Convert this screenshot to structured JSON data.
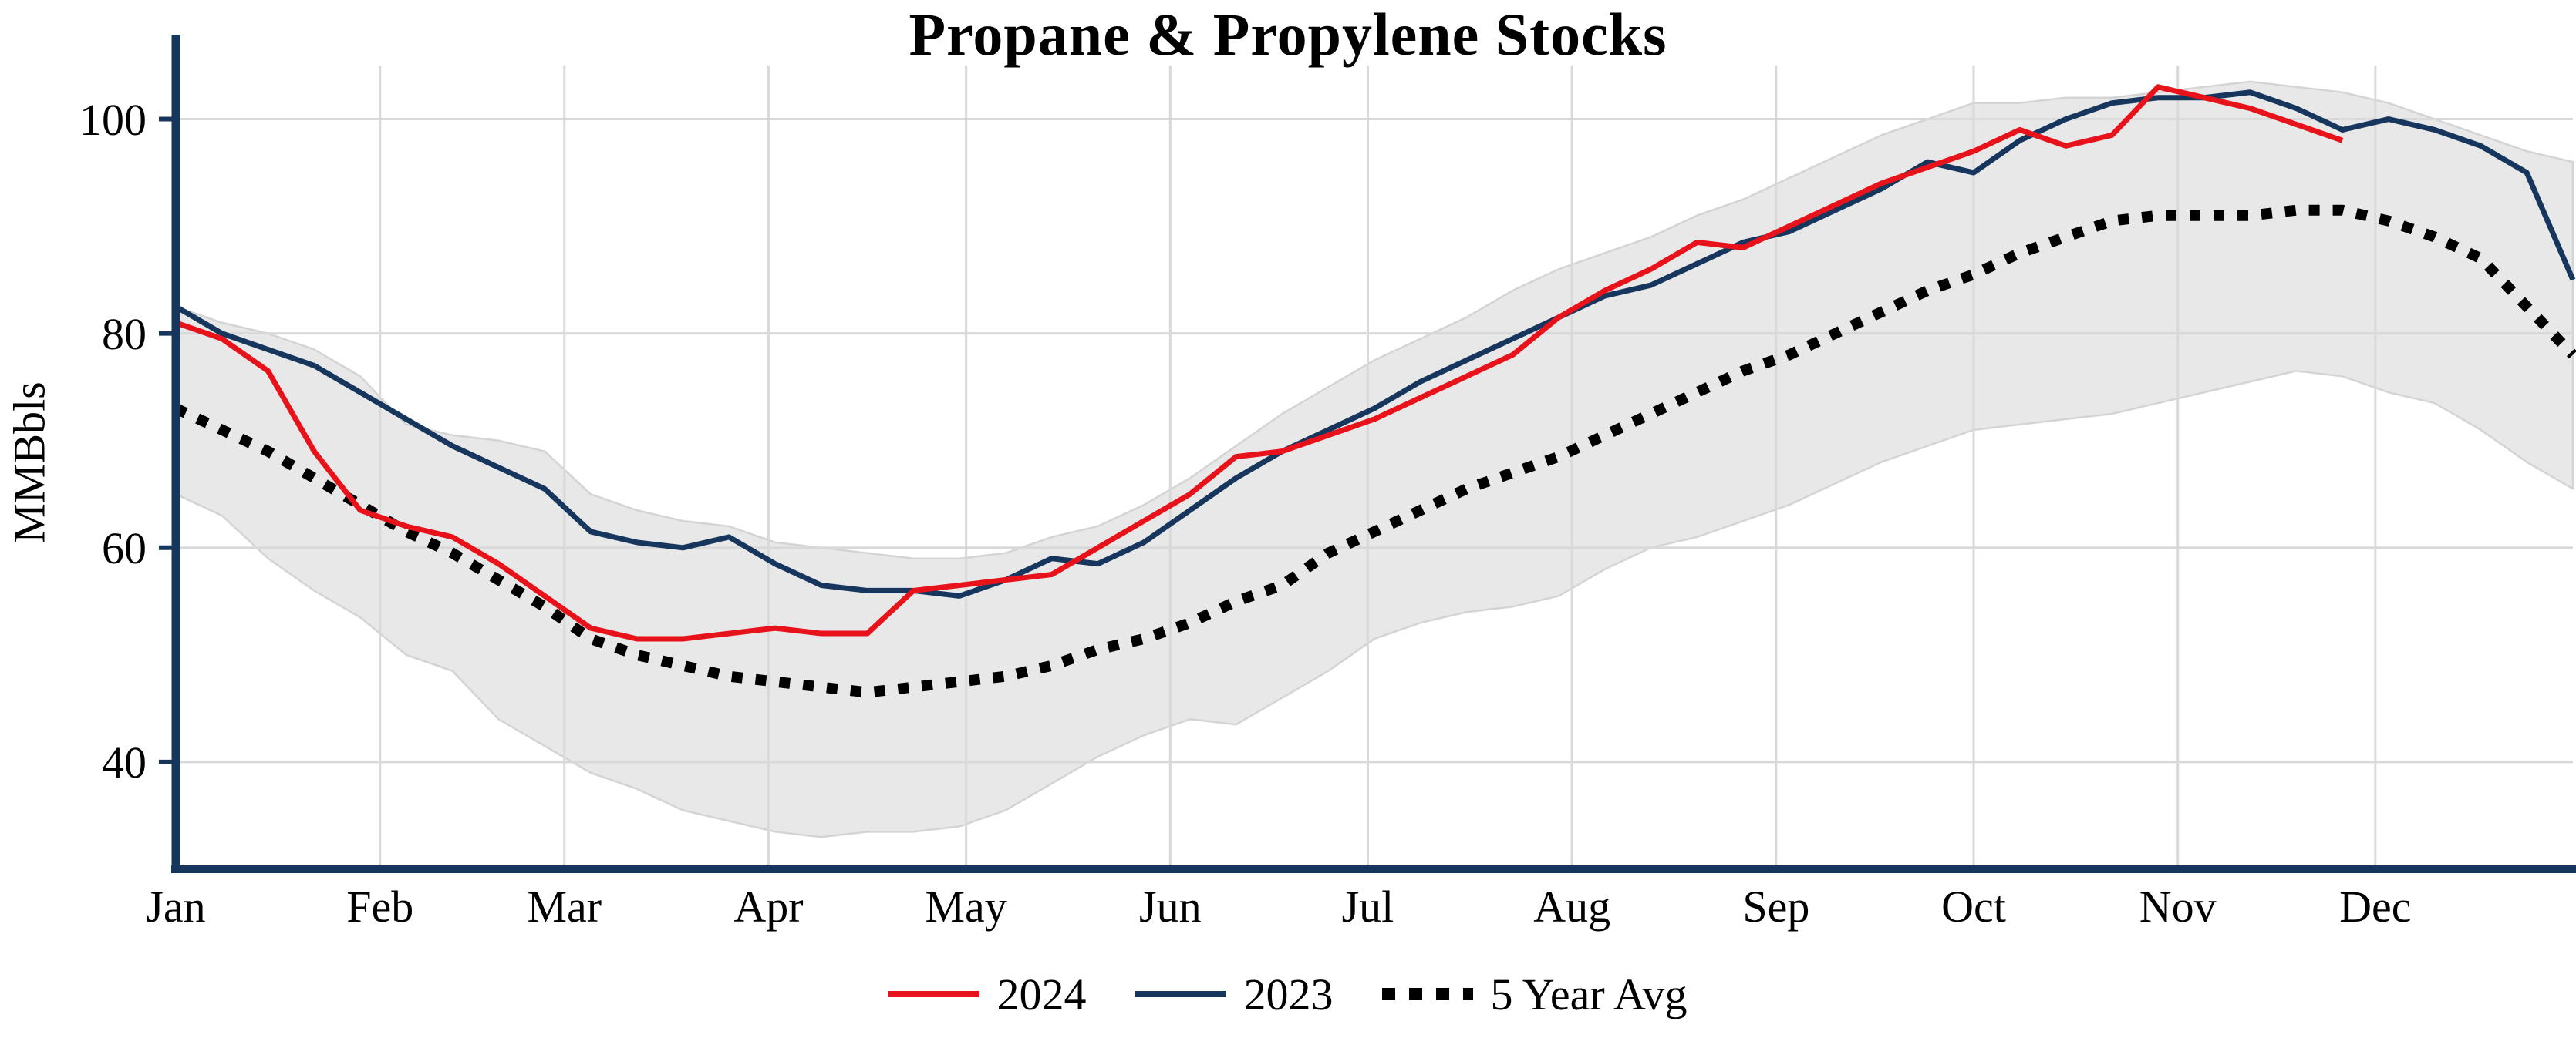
{
  "chart_data": {
    "type": "line",
    "title": "Propane & Propylene Stocks",
    "ylabel": "MMBbls",
    "xlabel": "",
    "x_unit": "day of year, weekly data points",
    "xlim": [
      0,
      364
    ],
    "ylim": [
      30,
      105
    ],
    "grid": "on",
    "legend_position": "bottom-center",
    "colors": {
      "red": "#e8121a",
      "navy": "#17365d",
      "avg": "#000000",
      "band_fill": "#e8e8e8",
      "band_edge": "#d4d4d4",
      "grid": "#d9d9d9",
      "axis": "#17365d",
      "text": "#000000"
    },
    "y_axis": {
      "ticks": [
        40,
        60,
        80,
        100
      ]
    },
    "x_axis": {
      "labels": [
        "Jan",
        "Feb",
        "Mar",
        "Apr",
        "May",
        "Jun",
        "Jul",
        "Aug",
        "Sep",
        "Oct",
        "Nov",
        "Dec"
      ],
      "label_days": [
        0,
        31,
        59,
        90,
        120,
        151,
        181,
        212,
        243,
        273,
        304,
        334
      ]
    },
    "series": [
      {
        "name": "2023",
        "color": "#17365d",
        "style": "solid",
        "x_start_day": 0,
        "step_days": 7,
        "values": [
          82.5,
          80,
          78.5,
          77,
          74.5,
          72,
          69.5,
          67.5,
          65.5,
          61.5,
          60.5,
          60,
          61,
          58.5,
          56.5,
          56,
          56,
          55.5,
          57,
          59,
          58.5,
          60.5,
          63.5,
          66.5,
          69,
          71,
          73,
          75.5,
          77.5,
          79.5,
          81.5,
          83.5,
          84.5,
          86.5,
          88.5,
          89.5,
          91.5,
          93.5,
          96,
          95,
          98,
          100,
          101.5,
          102,
          102,
          102.5,
          101,
          99,
          100,
          99,
          97.5,
          95,
          85
        ]
      },
      {
        "name": "5 Year Avg",
        "color": "#000000",
        "style": "dotted",
        "x_start_day": 0,
        "step_days": 7,
        "values": [
          73,
          71,
          69,
          66.5,
          64,
          61.5,
          59.5,
          57,
          54.5,
          51.5,
          50,
          49,
          48,
          47.5,
          47,
          46.5,
          47,
          47.5,
          48,
          49,
          50.5,
          51.5,
          53,
          55,
          56.5,
          59.5,
          61.5,
          63.5,
          65.5,
          67,
          68.5,
          70.5,
          72.5,
          74.5,
          76.5,
          78,
          80,
          82,
          84,
          85.5,
          87.5,
          89,
          90.5,
          91,
          91,
          91,
          91.5,
          91.5,
          90.5,
          89,
          87,
          82.5,
          78
        ]
      },
      {
        "name": "2024",
        "color": "#e8121a",
        "style": "solid",
        "x_start_day": 0,
        "step_days": 7,
        "values": [
          81,
          79.5,
          76.5,
          69,
          63.5,
          62,
          61,
          58.5,
          55.5,
          52.5,
          51.5,
          51.5,
          52,
          52.5,
          52,
          52,
          56,
          56.5,
          57,
          57.5,
          60,
          62.5,
          65,
          68.5,
          69,
          70.5,
          72,
          74,
          76,
          78,
          81.5,
          84,
          86,
          88.5,
          88,
          90,
          92,
          94,
          95.5,
          97,
          99,
          97.5,
          98.5,
          103,
          102,
          101,
          99.5,
          98
        ]
      }
    ],
    "band": {
      "name": "5-year range",
      "x_start_day": 0,
      "step_days": 7,
      "upper": [
        82.5,
        81,
        80,
        78.5,
        76,
        71.5,
        70.5,
        70,
        69,
        65,
        63.5,
        62.5,
        62,
        60.5,
        60,
        59.5,
        59,
        59,
        59.5,
        61,
        62,
        64,
        66.5,
        69.5,
        72.5,
        75,
        77.5,
        79.5,
        81.5,
        84,
        86,
        87.5,
        89,
        91,
        92.5,
        94.5,
        96.5,
        98.5,
        100,
        101.5,
        101.5,
        102,
        102,
        102.5,
        103,
        103.5,
        103,
        102.5,
        101.5,
        100,
        98.5,
        97,
        96
      ],
      "lower": [
        65,
        63,
        59,
        56,
        53.5,
        50,
        48.5,
        44,
        41.5,
        39,
        37.5,
        35.5,
        34.5,
        33.5,
        33,
        33.5,
        33.5,
        34,
        35.5,
        38,
        40.5,
        42.5,
        44,
        43.5,
        46,
        48.5,
        51.5,
        53,
        54,
        54.5,
        55.5,
        58,
        60,
        61,
        62.5,
        64,
        66,
        68,
        69.5,
        71,
        71.5,
        72,
        72.5,
        73.5,
        74.5,
        75.5,
        76.5,
        76,
        74.5,
        73.5,
        71,
        68,
        65.5
      ]
    }
  }
}
